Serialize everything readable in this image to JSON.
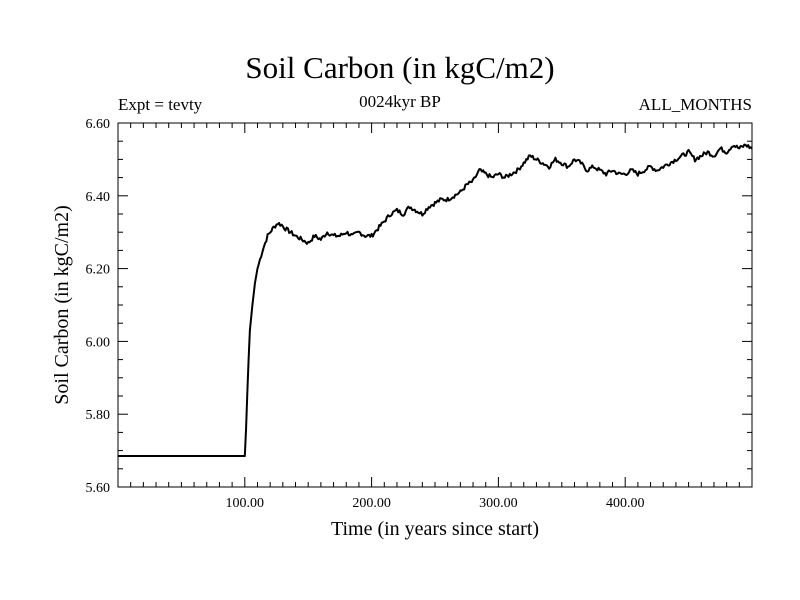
{
  "header": {
    "title": "Soil Carbon (in kgC/m2)",
    "subtitle": "0024kyr BP",
    "experiment": "Expt = tevty",
    "months": "ALL_MONTHS"
  },
  "chart_data": {
    "type": "line",
    "title": "Soil Carbon (in kgC/m2)",
    "xlabel": "Time (in years since start)",
    "ylabel": "Soil Carbon (in kgC/m2)",
    "xlim": [
      0,
      500
    ],
    "ylim": [
      5.6,
      6.6
    ],
    "x_ticks": [
      100,
      200,
      300,
      400
    ],
    "x_tick_labels": [
      "100.00",
      "200.00",
      "300.00",
      "400.00"
    ],
    "y_ticks": [
      5.6,
      5.8,
      6.0,
      6.2,
      6.4,
      6.6
    ],
    "y_tick_labels": [
      "5.60",
      "5.80",
      "6.00",
      "6.20",
      "6.40",
      "6.60"
    ],
    "grid": false,
    "series": [
      {
        "x": [
          0,
          100,
          101,
          102,
          103,
          104,
          106,
          108,
          110,
          114,
          118,
          122,
          126,
          129,
          132,
          136,
          140,
          145,
          150,
          155,
          160,
          165,
          170,
          175,
          180,
          185,
          190,
          195,
          200,
          205,
          210,
          215,
          220,
          225,
          230,
          235,
          240,
          245,
          250,
          255,
          260,
          265,
          270,
          275,
          280,
          285,
          290,
          295,
          300,
          305,
          310,
          315,
          320,
          325,
          330,
          335,
          340,
          345,
          350,
          355,
          360,
          365,
          370,
          375,
          380,
          385,
          390,
          395,
          400,
          405,
          410,
          415,
          420,
          425,
          430,
          435,
          440,
          445,
          450,
          455,
          460,
          465,
          470,
          475,
          480,
          485,
          490,
          495,
          500
        ],
        "y": [
          5.685,
          5.685,
          5.76,
          5.86,
          5.95,
          6.03,
          6.1,
          6.16,
          6.2,
          6.25,
          6.29,
          6.31,
          6.325,
          6.32,
          6.31,
          6.3,
          6.29,
          6.28,
          6.27,
          6.29,
          6.28,
          6.3,
          6.29,
          6.29,
          6.3,
          6.29,
          6.3,
          6.29,
          6.29,
          6.31,
          6.33,
          6.35,
          6.36,
          6.35,
          6.37,
          6.36,
          6.35,
          6.37,
          6.38,
          6.39,
          6.39,
          6.4,
          6.41,
          6.43,
          6.44,
          6.47,
          6.46,
          6.45,
          6.46,
          6.45,
          6.46,
          6.47,
          6.49,
          6.51,
          6.5,
          6.49,
          6.48,
          6.5,
          6.49,
          6.48,
          6.5,
          6.49,
          6.47,
          6.48,
          6.47,
          6.46,
          6.47,
          6.46,
          6.46,
          6.47,
          6.46,
          6.47,
          6.48,
          6.47,
          6.48,
          6.49,
          6.5,
          6.51,
          6.52,
          6.5,
          6.51,
          6.52,
          6.51,
          6.53,
          6.52,
          6.54,
          6.53,
          6.54,
          6.53
        ]
      }
    ]
  }
}
